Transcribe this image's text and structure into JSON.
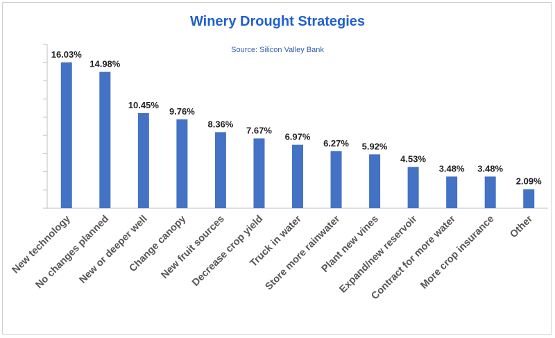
{
  "chart_data": {
    "type": "bar",
    "title": "Winery Drought Strategies",
    "subtitle": "Source: Silicon Valley Bank",
    "xlabel": "",
    "ylabel": "",
    "ylim": [
      0,
      18
    ],
    "ytick_step": 2,
    "grid": false,
    "legend": "none",
    "bar_color": "#4472c4",
    "categories": [
      "New technology",
      "No changes planned",
      "New or deeper well",
      "Change canopy",
      "New fruit sources",
      "Decrease crop yield",
      "Truck in water",
      "Store more rainwater",
      "Plant new vines",
      "Expand/new reservoir",
      "Contract for more water",
      "More crop insurance",
      "Other"
    ],
    "values": [
      16.03,
      14.98,
      10.45,
      9.76,
      8.36,
      7.67,
      6.97,
      6.27,
      5.92,
      4.53,
      3.48,
      3.48,
      2.09
    ],
    "value_labels": [
      "16.03%",
      "14.98%",
      "10.45%",
      "9.76%",
      "8.36%",
      "7.67%",
      "6.97%",
      "6.27%",
      "5.92%",
      "4.53%",
      "3.48%",
      "3.48%",
      "2.09%"
    ]
  }
}
